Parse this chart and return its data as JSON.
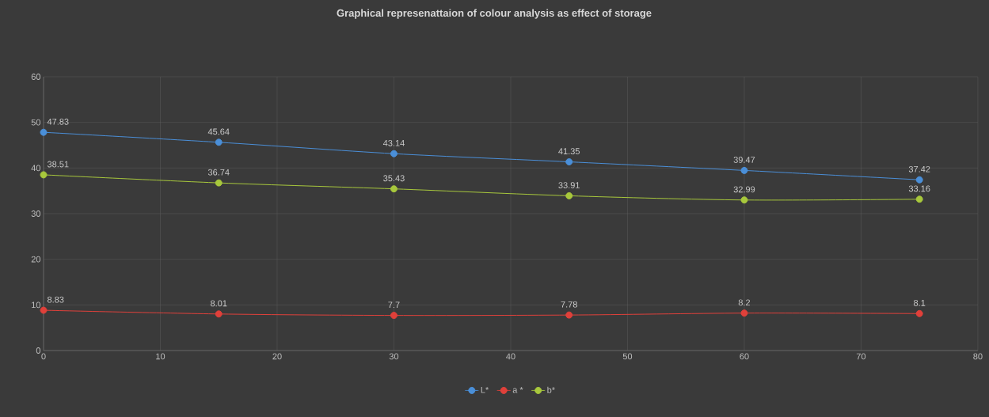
{
  "chart_data": {
    "type": "line",
    "title": "Graphical represenattaion of colour analysis as effect of storage",
    "x": [
      0,
      15,
      30,
      45,
      60,
      75
    ],
    "series": [
      {
        "name": "L*",
        "color": "#4a8fd8",
        "values": [
          47.83,
          45.64,
          43.14,
          41.35,
          39.47,
          37.42
        ]
      },
      {
        "name": "a *",
        "color": "#e0403a",
        "values": [
          8.83,
          8.01,
          7.7,
          7.78,
          8.2,
          8.1
        ]
      },
      {
        "name": "b*",
        "color": "#a8c83c",
        "values": [
          38.51,
          36.74,
          35.43,
          33.91,
          32.99,
          33.16
        ]
      }
    ],
    "xlim": [
      0,
      80
    ],
    "xticks": [
      0,
      10,
      20,
      30,
      40,
      50,
      60,
      70,
      80
    ],
    "ylim": [
      0,
      60
    ],
    "yticks": [
      0,
      10,
      20,
      30,
      40,
      50,
      60
    ],
    "grid": true,
    "legend": "bottom",
    "marker": "circle",
    "line_style": "solid",
    "data_labels": true
  }
}
